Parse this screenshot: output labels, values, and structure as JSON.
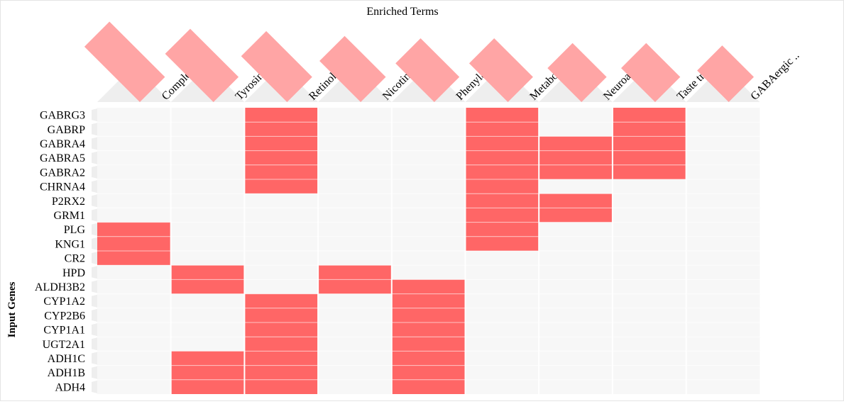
{
  "chart_data": {
    "type": "heatmap",
    "title": "Enriched Terms",
    "ylabel": "Input Genes",
    "columns": [
      "Complemen..",
      "Tyrosine m..",
      "Retinol met..",
      "Nicotine ad..",
      "Phenylalani..",
      "Metabolism ..",
      "Neuroactive..",
      "Taste trans..",
      "GABAergic .."
    ],
    "column_strength": [
      0.9,
      0.75,
      0.7,
      0.6,
      0.55,
      0.55,
      0.45,
      0.45,
      0.4
    ],
    "rows": [
      "GABRG3",
      "GABRP",
      "GABRA4",
      "GABRA5",
      "GABRA2",
      "CHRNA4",
      "P2RX2",
      "GRM1",
      "PLG",
      "KNG1",
      "CR2",
      "HPD",
      "ALDH3B2",
      "CYP1A2",
      "CYP2B6",
      "CYP1A1",
      "UGT2A1",
      "ADH1C",
      "ADH1B",
      "ADH4"
    ],
    "matrix": [
      [
        0,
        0,
        1,
        0,
        0,
        1,
        0,
        1,
        0
      ],
      [
        0,
        0,
        1,
        0,
        0,
        1,
        0,
        1,
        0
      ],
      [
        0,
        0,
        1,
        0,
        0,
        1,
        1,
        1,
        0
      ],
      [
        0,
        0,
        1,
        0,
        0,
        1,
        1,
        1,
        0
      ],
      [
        0,
        0,
        1,
        0,
        0,
        1,
        1,
        1,
        0
      ],
      [
        0,
        0,
        1,
        0,
        0,
        1,
        0,
        0,
        0
      ],
      [
        0,
        0,
        0,
        0,
        0,
        1,
        1,
        0,
        0
      ],
      [
        0,
        0,
        0,
        0,
        0,
        1,
        1,
        0,
        0
      ],
      [
        1,
        0,
        0,
        0,
        0,
        1,
        0,
        0,
        0
      ],
      [
        1,
        0,
        0,
        0,
        0,
        1,
        0,
        0,
        0
      ],
      [
        1,
        0,
        0,
        0,
        0,
        0,
        0,
        0,
        0
      ],
      [
        0,
        1,
        0,
        1,
        0,
        0,
        0,
        0,
        0
      ],
      [
        0,
        1,
        0,
        1,
        1,
        0,
        0,
        0,
        0
      ],
      [
        0,
        0,
        1,
        0,
        1,
        0,
        0,
        0,
        0
      ],
      [
        0,
        0,
        1,
        0,
        1,
        0,
        0,
        0,
        0
      ],
      [
        0,
        0,
        1,
        0,
        1,
        0,
        0,
        0,
        0
      ],
      [
        0,
        0,
        1,
        0,
        1,
        0,
        0,
        0,
        0
      ],
      [
        0,
        1,
        1,
        0,
        1,
        0,
        0,
        0,
        0
      ],
      [
        0,
        1,
        1,
        0,
        1,
        0,
        0,
        0,
        0
      ],
      [
        0,
        1,
        1,
        0,
        1,
        0,
        0,
        0,
        0
      ]
    ],
    "colors": {
      "hit": "#ff6666",
      "empty": "#f7f7f7",
      "header_bar": "#ffa5a5",
      "header_bg": "#eeeeee",
      "row_tab": "#eeeeee"
    }
  }
}
